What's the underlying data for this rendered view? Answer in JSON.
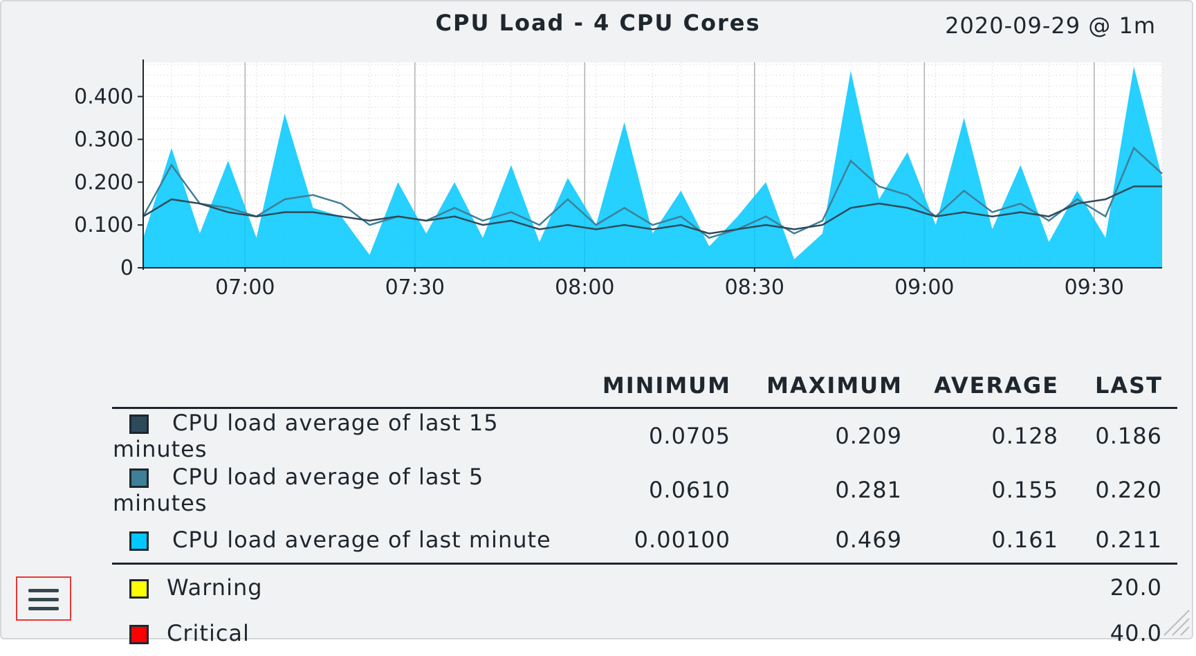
{
  "header": {
    "title": "CPU Load - 4 CPU Cores",
    "date_range": "2020-09-29 @ 1m"
  },
  "chart_data": {
    "type": "area",
    "title": "CPU Load - 4 CPU Cores",
    "subtitle": "2020-09-29 @ 1m",
    "xlabel": "",
    "ylabel": "",
    "x_range": [
      "06:42",
      "09:42"
    ],
    "x_ticks": [
      "07:00",
      "07:30",
      "08:00",
      "08:30",
      "09:00",
      "09:30"
    ],
    "y_ticks": [
      "0",
      "0.100",
      "0.200",
      "0.300",
      "0.400"
    ],
    "ylim": [
      0,
      0.48
    ],
    "grid": true,
    "x": [
      "06:42",
      "06:47",
      "06:52",
      "06:57",
      "07:02",
      "07:07",
      "07:12",
      "07:17",
      "07:22",
      "07:27",
      "07:32",
      "07:37",
      "07:42",
      "07:47",
      "07:52",
      "07:57",
      "08:02",
      "08:07",
      "08:12",
      "08:17",
      "08:22",
      "08:27",
      "08:32",
      "08:37",
      "08:42",
      "08:47",
      "08:52",
      "08:57",
      "09:02",
      "09:07",
      "09:12",
      "09:17",
      "09:22",
      "09:27",
      "09:32",
      "09:37",
      "09:42"
    ],
    "series": [
      {
        "name": "CPU load average of last minute",
        "color": "#00c8ff",
        "style": "area",
        "values": [
          0.07,
          0.28,
          0.08,
          0.25,
          0.07,
          0.36,
          0.14,
          0.12,
          0.03,
          0.2,
          0.08,
          0.2,
          0.07,
          0.24,
          0.06,
          0.21,
          0.1,
          0.34,
          0.08,
          0.18,
          0.05,
          0.12,
          0.2,
          0.02,
          0.08,
          0.46,
          0.16,
          0.27,
          0.1,
          0.35,
          0.09,
          0.24,
          0.06,
          0.18,
          0.07,
          0.47,
          0.21
        ]
      },
      {
        "name": "CPU load average of last 5 minutes",
        "color": "#3f7f98",
        "style": "line",
        "values": [
          0.12,
          0.24,
          0.15,
          0.14,
          0.12,
          0.16,
          0.17,
          0.15,
          0.1,
          0.12,
          0.11,
          0.14,
          0.11,
          0.13,
          0.1,
          0.16,
          0.1,
          0.14,
          0.1,
          0.12,
          0.07,
          0.09,
          0.12,
          0.08,
          0.11,
          0.25,
          0.19,
          0.17,
          0.12,
          0.18,
          0.13,
          0.15,
          0.11,
          0.16,
          0.12,
          0.28,
          0.22
        ]
      },
      {
        "name": "CPU load average of last 15 minutes",
        "color": "#2d4a5b",
        "style": "line",
        "values": [
          0.12,
          0.16,
          0.15,
          0.13,
          0.12,
          0.13,
          0.13,
          0.12,
          0.11,
          0.12,
          0.11,
          0.12,
          0.1,
          0.11,
          0.09,
          0.1,
          0.09,
          0.1,
          0.09,
          0.1,
          0.08,
          0.09,
          0.1,
          0.09,
          0.1,
          0.14,
          0.15,
          0.14,
          0.12,
          0.13,
          0.12,
          0.13,
          0.12,
          0.15,
          0.16,
          0.19,
          0.19
        ]
      }
    ]
  },
  "legend": {
    "columns": [
      "MINIMUM",
      "MAXIMUM",
      "AVERAGE",
      "LAST"
    ],
    "rows": [
      {
        "label": "CPU load average of last 15 minutes",
        "color": "#2d4a5b",
        "min": "0.0705",
        "max": "0.209",
        "avg": "0.128",
        "last": "0.186"
      },
      {
        "label": "CPU load average of last 5 minutes",
        "color": "#3f7f98",
        "min": "0.0610",
        "max": "0.281",
        "avg": "0.155",
        "last": "0.220"
      },
      {
        "label": "CPU load average of last minute",
        "color": "#00c8ff",
        "min": "0.00100",
        "max": "0.469",
        "avg": "0.161",
        "last": "0.211"
      }
    ],
    "thresholds": [
      {
        "label": "Warning",
        "color": "#ffff00",
        "value": "20.0"
      },
      {
        "label": "Critical",
        "color": "#ff0000",
        "value": "40.0"
      }
    ]
  },
  "menu": {
    "icon": "hamburger-menu-icon"
  }
}
